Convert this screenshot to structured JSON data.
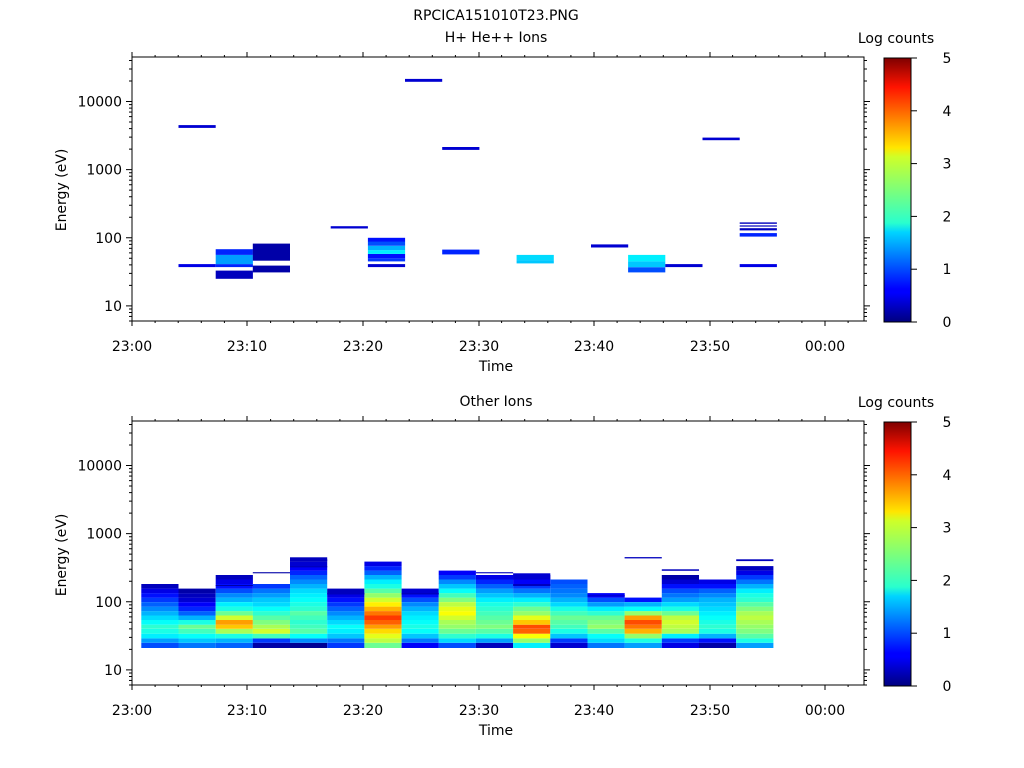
{
  "figure_title": "RPCICA151010T23.PNG",
  "colorbar": {
    "label": "Log counts",
    "ticks": [
      "0",
      "1",
      "2",
      "3",
      "4",
      "5"
    ],
    "range": [
      0,
      5
    ],
    "colormap": "jet"
  },
  "chart_data": [
    {
      "type": "heatmap",
      "title": "H+ He++ Ions",
      "xlabel": "Time",
      "ylabel": "Energy (eV)",
      "x_unit": "minutes after 23:00",
      "xlim": [
        0,
        63
      ],
      "x_ticks": [
        "23:00",
        "23:10",
        "23:20",
        "23:30",
        "23:40",
        "23:50",
        "00:00"
      ],
      "y_scale": "log",
      "ylim": [
        6,
        45000
      ],
      "y_ticks": [
        "10",
        "100",
        "1000",
        "10000"
      ],
      "cells": [
        {
          "t0": 4.0,
          "t1": 7.2,
          "e0": 37,
          "e1": 41,
          "v": 0.5
        },
        {
          "t0": 4.0,
          "t1": 7.2,
          "e0": 4100,
          "e1": 4500,
          "v": 0.4
        },
        {
          "t0": 7.2,
          "t1": 10.4,
          "e0": 25,
          "e1": 33,
          "v": 0.3
        },
        {
          "t0": 7.2,
          "t1": 10.4,
          "e0": 37,
          "e1": 41,
          "v": 0.8
        },
        {
          "t0": 7.2,
          "t1": 10.4,
          "e0": 41,
          "e1": 56,
          "v": 1.4
        },
        {
          "t0": 7.2,
          "t1": 10.4,
          "e0": 56,
          "e1": 68,
          "v": 0.8
        },
        {
          "t0": 10.4,
          "t1": 13.6,
          "e0": 31,
          "e1": 39,
          "v": 0.2
        },
        {
          "t0": 10.4,
          "t1": 13.6,
          "e0": 46,
          "e1": 82,
          "v": 0.2
        },
        {
          "t0": 17.1,
          "t1": 20.3,
          "e0": 137,
          "e1": 148,
          "v": 0.4
        },
        {
          "t0": 20.3,
          "t1": 23.5,
          "e0": 37,
          "e1": 41,
          "v": 0.4
        },
        {
          "t0": 20.3,
          "t1": 23.5,
          "e0": 45,
          "e1": 50,
          "v": 0.9
        },
        {
          "t0": 20.3,
          "t1": 23.5,
          "e0": 50,
          "e1": 58,
          "v": 0.7
        },
        {
          "t0": 20.3,
          "t1": 23.5,
          "e0": 58,
          "e1": 66,
          "v": 1.8
        },
        {
          "t0": 20.3,
          "t1": 23.5,
          "e0": 66,
          "e1": 76,
          "v": 1.5
        },
        {
          "t0": 20.3,
          "t1": 23.5,
          "e0": 76,
          "e1": 88,
          "v": 1.0
        },
        {
          "t0": 20.3,
          "t1": 23.5,
          "e0": 88,
          "e1": 100,
          "v": 0.7
        },
        {
          "t0": 23.5,
          "t1": 26.7,
          "e0": 19500,
          "e1": 21500,
          "v": 0.4
        },
        {
          "t0": 26.7,
          "t1": 29.9,
          "e0": 57,
          "e1": 67,
          "v": 0.8
        },
        {
          "t0": 26.7,
          "t1": 29.9,
          "e0": 1950,
          "e1": 2150,
          "v": 0.4
        },
        {
          "t0": 33.1,
          "t1": 36.3,
          "e0": 42,
          "e1": 47,
          "v": 1.6
        },
        {
          "t0": 33.1,
          "t1": 36.3,
          "e0": 47,
          "e1": 56,
          "v": 1.7
        },
        {
          "t0": 39.5,
          "t1": 42.7,
          "e0": 72,
          "e1": 80,
          "v": 0.4
        },
        {
          "t0": 42.7,
          "t1": 45.9,
          "e0": 31,
          "e1": 37,
          "v": 1.0
        },
        {
          "t0": 42.7,
          "t1": 45.9,
          "e0": 37,
          "e1": 45,
          "v": 1.6
        },
        {
          "t0": 42.7,
          "t1": 45.9,
          "e0": 45,
          "e1": 56,
          "v": 1.8
        },
        {
          "t0": 45.9,
          "t1": 49.1,
          "e0": 37,
          "e1": 41,
          "v": 0.4
        },
        {
          "t0": 49.1,
          "t1": 52.3,
          "e0": 2700,
          "e1": 2950,
          "v": 0.4
        },
        {
          "t0": 52.3,
          "t1": 55.5,
          "e0": 37,
          "e1": 41,
          "v": 0.5
        },
        {
          "t0": 52.3,
          "t1": 55.5,
          "e0": 104,
          "e1": 117,
          "v": 0.8
        },
        {
          "t0": 52.3,
          "t1": 55.5,
          "e0": 128,
          "e1": 138,
          "v": 0.3
        },
        {
          "t0": 52.3,
          "t1": 55.5,
          "e0": 146,
          "e1": 152,
          "v": 0.3
        },
        {
          "t0": 52.3,
          "t1": 55.5,
          "e0": 160,
          "e1": 168,
          "v": 0.3
        }
      ]
    },
    {
      "type": "heatmap",
      "title": "Other Ions",
      "xlabel": "Time",
      "ylabel": "Energy (eV)",
      "x_unit": "minutes after 23:00",
      "xlim": [
        0,
        63
      ],
      "x_ticks": [
        "23:00",
        "23:10",
        "23:20",
        "23:30",
        "23:40",
        "23:50",
        "00:00"
      ],
      "y_scale": "log",
      "ylim": [
        6,
        45000
      ],
      "y_ticks": [
        "10",
        "100",
        "1000",
        "10000"
      ],
      "energy_bins": [
        21,
        25,
        29,
        34,
        40,
        46,
        54,
        63,
        73,
        85,
        99,
        115,
        134,
        156,
        182,
        212,
        247,
        287,
        334,
        389,
        450
      ],
      "columns": [
        {
          "t0": 0.8,
          "t1": 4.0,
          "levels": [
            1.0,
            1.4,
            1.8,
            2.0,
            2.1,
            1.9,
            1.7,
            1.5,
            1.3,
            1.1,
            0.9,
            0.7,
            0.5,
            0.3
          ]
        },
        {
          "t0": 4.0,
          "t1": 7.2,
          "levels": [
            1.2,
            1.6,
            1.9,
            2.2,
            2.4,
            2.0,
            1.5,
            1.1,
            0.8,
            0.6,
            0.4,
            0.3,
            0.2
          ]
        },
        {
          "t0": 7.2,
          "t1": 10.4,
          "levels": [
            1.1,
            1.5,
            2.0,
            2.7,
            3.4,
            3.6,
            2.9,
            2.4,
            2.0,
            1.8,
            1.5,
            1.3,
            1.0,
            0.7,
            0.5,
            0.3
          ]
        },
        {
          "t0": 10.4,
          "t1": 13.6,
          "levels": [
            0.2,
            0.9,
            2.2,
            2.9,
            2.7,
            2.5,
            2.3,
            2.1,
            1.9,
            1.7,
            1.6,
            1.4,
            1.2,
            0.9
          ]
        },
        {
          "t0": 13.6,
          "t1": 16.8,
          "levels": [
            0.1,
            1.3,
            1.9,
            2.3,
            2.2,
            2.1,
            2.2,
            2.3,
            2.1,
            2.0,
            1.9,
            1.8,
            1.7,
            1.5,
            1.3,
            1.1,
            0.8,
            0.6,
            0.4,
            0.3
          ]
        },
        {
          "t0": 16.8,
          "t1": 20.0,
          "levels": [
            0.9,
            1.2,
            1.6,
            1.8,
            1.9,
            1.7,
            1.5,
            1.3,
            1.1,
            0.9,
            0.7,
            0.5,
            0.3
          ]
        },
        {
          "t0": 20.0,
          "t1": 23.2,
          "levels": null,
          "lv2": [
            2.4,
            2.8,
            3.0,
            3.3,
            3.6,
            3.9,
            4.1,
            3.8,
            3.5,
            3.2,
            2.9,
            2.6,
            2.3,
            2.0,
            1.8,
            1.5,
            1.1,
            0.8,
            0.5
          ]
        },
        {
          "t0": 23.2,
          "t1": 26.4,
          "levels": [
            0.6,
            1.2,
            1.6,
            1.9,
            2.0,
            1.9,
            1.8,
            1.7,
            1.5,
            1.3,
            1.0,
            0.7,
            0.4
          ]
        },
        {
          "t0": 26.4,
          "t1": 29.6,
          "levels": [
            1.0,
            1.7,
            2.1,
            2.4,
            2.6,
            2.7,
            2.9,
            3.1,
            3.0,
            2.8,
            2.5,
            2.2,
            1.9,
            1.6,
            1.3,
            0.9,
            0.6
          ]
        },
        {
          "t0": 29.6,
          "t1": 32.8,
          "levels": [
            0.3,
            1.4,
            2.0,
            2.3,
            2.5,
            2.4,
            2.3,
            2.2,
            2.1,
            2.0,
            1.8,
            1.6,
            1.4,
            1.1,
            0.8,
            0.5
          ]
        },
        {
          "t0": 32.8,
          "t1": 36.0,
          "levels": null,
          "lv2": [
            1.8,
            2.6,
            3.1,
            3.9,
            4.0,
            3.4,
            3.0,
            2.6,
            2.4,
            2.1,
            1.8,
            1.5,
            1.2,
            0.9,
            0.6,
            0.4
          ]
        },
        {
          "t0": 36.0,
          "t1": 39.2,
          "levels": [
            0.4,
            0.9,
            1.6,
            2.0,
            2.2,
            2.3,
            2.4,
            2.2,
            2.0,
            1.7,
            1.5,
            1.3,
            1.2,
            1.1,
            1.0
          ]
        },
        {
          "t0": 39.2,
          "t1": 42.4,
          "levels": [
            1.2,
            1.7,
            1.9,
            2.3,
            2.6,
            2.5,
            2.4,
            2.1,
            1.8,
            1.4,
            1.0,
            0.6
          ]
        },
        {
          "t0": 42.4,
          "t1": 45.6,
          "levels": [
            1.4,
            2.0,
            2.6,
            3.5,
            3.8,
            4.0,
            3.6,
            2.6,
            1.9,
            1.5,
            0.7
          ]
        },
        {
          "t0": 45.6,
          "t1": 48.8,
          "levels": [
            0.5,
            0.9,
            1.8,
            2.7,
            2.8,
            2.9,
            2.8,
            2.4,
            2.0,
            1.7,
            1.4,
            1.2,
            1.0,
            0.7,
            0.4,
            0.2
          ]
        },
        {
          "t0": 48.8,
          "t1": 52.0,
          "levels": [
            0.2,
            0.7,
            1.5,
            2.0,
            2.1,
            2.0,
            1.9,
            1.8,
            1.7,
            1.6,
            1.5,
            1.3,
            1.1,
            0.7,
            0.5
          ]
        },
        {
          "t0": 52.0,
          "t1": 55.2,
          "levels": null,
          "lv3": [
            1.4,
            2.0,
            2.3,
            2.5,
            2.6,
            2.7,
            2.8,
            2.7,
            2.5,
            2.3,
            2.1,
            2.0,
            1.8,
            1.5,
            1.2,
            0.9,
            0.5,
            0.3
          ]
        }
      ],
      "lines": [
        {
          "t0": 7.2,
          "t1": 10.4,
          "e0": 170,
          "e1": 176,
          "v": 0.2
        },
        {
          "t0": 10.4,
          "t1": 13.6,
          "e0": 262,
          "e1": 272,
          "v": 0.2
        },
        {
          "t0": 13.6,
          "t1": 16.8,
          "e0": 320,
          "e1": 335,
          "v": 0.3
        },
        {
          "t0": 13.6,
          "t1": 16.8,
          "e0": 395,
          "e1": 420,
          "v": 0.3
        },
        {
          "t0": 16.8,
          "t1": 20.0,
          "e0": 128,
          "e1": 135,
          "v": 0.3
        },
        {
          "t0": 23.2,
          "t1": 26.4,
          "e0": 128,
          "e1": 135,
          "v": 0.3
        },
        {
          "t0": 29.6,
          "t1": 32.8,
          "e0": 262,
          "e1": 272,
          "v": 0.3
        },
        {
          "t0": 32.8,
          "t1": 36.0,
          "e0": 170,
          "e1": 182,
          "v": 0.3
        },
        {
          "t0": 32.8,
          "t1": 36.0,
          "e0": 212,
          "e1": 262,
          "v": 0.4
        },
        {
          "t0": 39.2,
          "t1": 42.4,
          "e0": 120,
          "e1": 126,
          "v": 0.4
        },
        {
          "t0": 42.4,
          "t1": 45.6,
          "e0": 432,
          "e1": 452,
          "v": 0.3
        },
        {
          "t0": 45.6,
          "t1": 48.8,
          "e0": 285,
          "e1": 300,
          "v": 0.3
        },
        {
          "t0": 52.0,
          "t1": 55.2,
          "e0": 395,
          "e1": 420,
          "v": 0.3
        }
      ]
    }
  ]
}
